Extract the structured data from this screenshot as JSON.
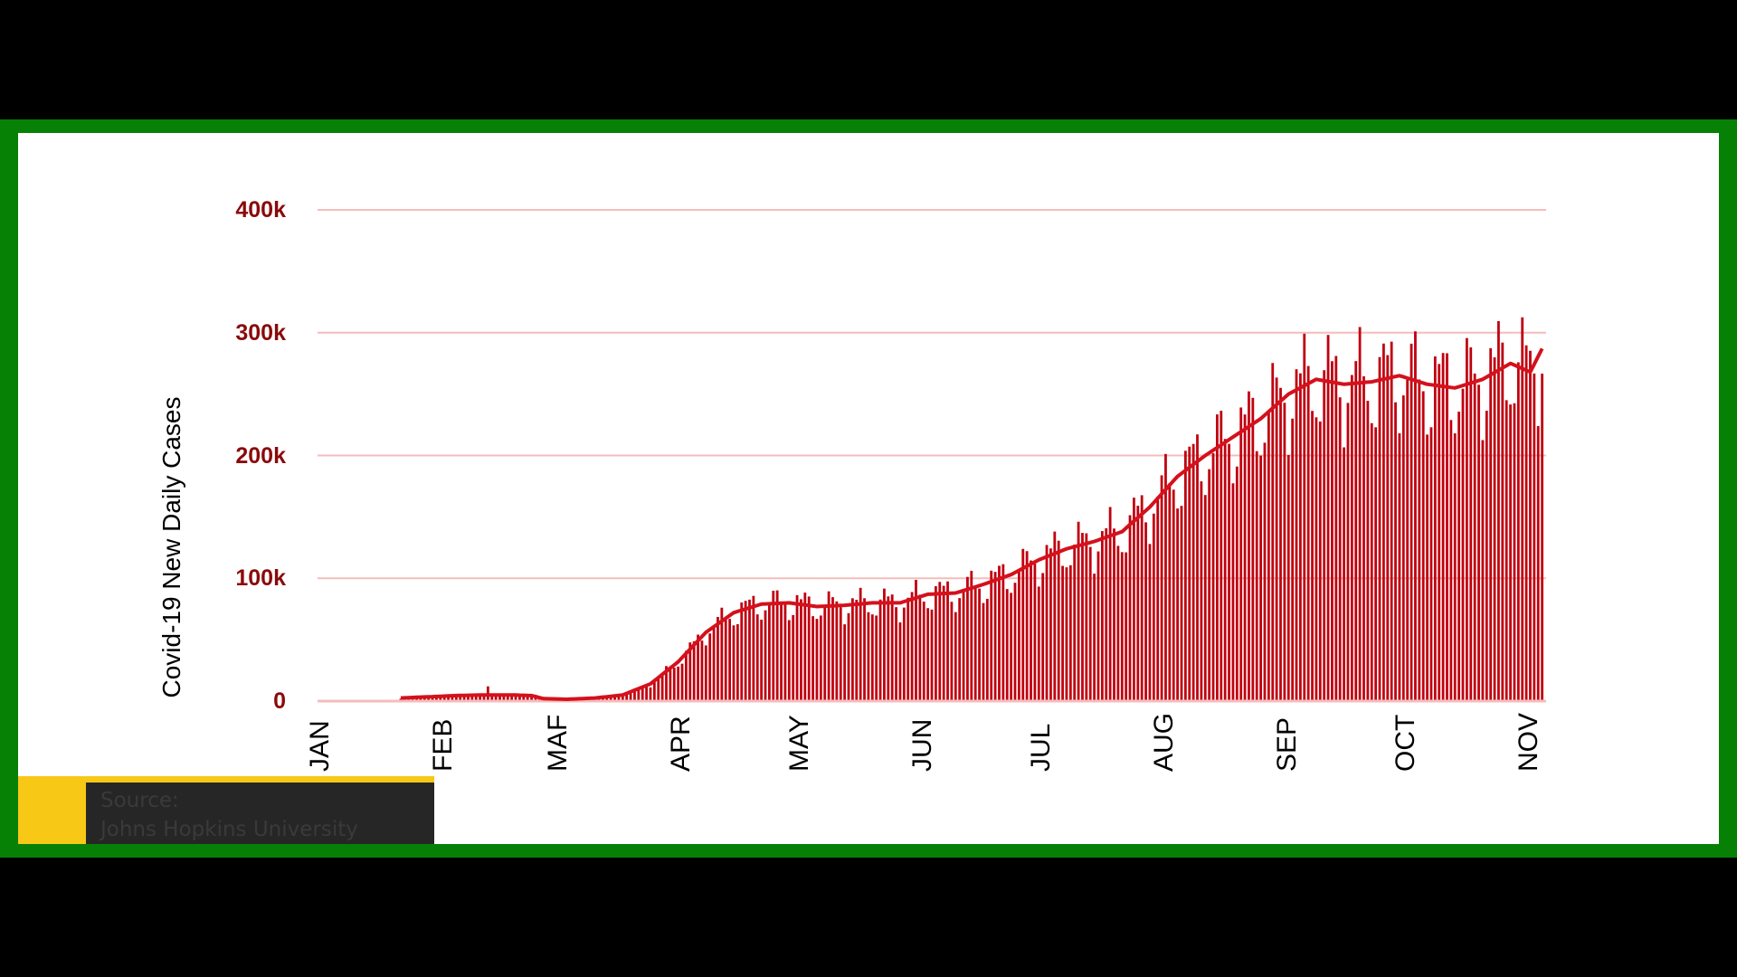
{
  "source": {
    "label": "Source:",
    "name": "Johns Hopkins University"
  },
  "colors": {
    "bars": "#c0000f",
    "average_line": "#d4111c",
    "grid": "#f5bcbc",
    "tick": "#8b0a0a",
    "frame": "#078006",
    "source_accent": "#f7c816"
  },
  "chart_data": {
    "type": "bar",
    "title": "",
    "ylabel": "Covid-19 New Daily Cases",
    "xlabel": "",
    "ylim": [
      0,
      400000
    ],
    "yticks": [
      {
        "v": 0,
        "label": "0"
      },
      {
        "v": 100000,
        "label": "100k"
      },
      {
        "v": 200000,
        "label": "200k"
      },
      {
        "v": 300000,
        "label": "300k"
      },
      {
        "v": 400000,
        "label": "400k"
      }
    ],
    "grid": true,
    "months": [
      {
        "label": "JAN",
        "day": 0
      },
      {
        "label": "FEB",
        "day": 31
      },
      {
        "label": "MAF",
        "day": 60
      },
      {
        "label": "APR",
        "day": 91
      },
      {
        "label": "MAY",
        "day": 121
      },
      {
        "label": "JUN",
        "day": 152
      },
      {
        "label": "JUL",
        "day": 182
      },
      {
        "label": "AUG",
        "day": 213
      },
      {
        "label": "SEP",
        "day": 244
      },
      {
        "label": "OCT",
        "day": 274
      },
      {
        "label": "NOV",
        "day": 305
      }
    ],
    "x_range_days": [
      0,
      310
    ],
    "series": [
      {
        "name": "7-day average (day of year, cases)",
        "type": "line",
        "points": [
          [
            21,
            2500
          ],
          [
            28,
            3500
          ],
          [
            35,
            4500
          ],
          [
            42,
            5000
          ],
          [
            49,
            5000
          ],
          [
            54,
            4500
          ],
          [
            57,
            2000
          ],
          [
            63,
            1500
          ],
          [
            70,
            2500
          ],
          [
            77,
            5000
          ],
          [
            84,
            14000
          ],
          [
            91,
            32000
          ],
          [
            98,
            56000
          ],
          [
            105,
            72000
          ],
          [
            112,
            79000
          ],
          [
            119,
            80000
          ],
          [
            126,
            77000
          ],
          [
            133,
            78000
          ],
          [
            140,
            80000
          ],
          [
            147,
            80000
          ],
          [
            154,
            87000
          ],
          [
            161,
            88000
          ],
          [
            168,
            95000
          ],
          [
            175,
            103000
          ],
          [
            182,
            115000
          ],
          [
            189,
            124000
          ],
          [
            196,
            130000
          ],
          [
            203,
            138000
          ],
          [
            210,
            158000
          ],
          [
            217,
            183000
          ],
          [
            224,
            200000
          ],
          [
            231,
            215000
          ],
          [
            238,
            230000
          ],
          [
            245,
            250000
          ],
          [
            252,
            262000
          ],
          [
            259,
            258000
          ],
          [
            266,
            260000
          ],
          [
            273,
            265000
          ],
          [
            280,
            258000
          ],
          [
            287,
            255000
          ],
          [
            294,
            262000
          ],
          [
            301,
            275000
          ],
          [
            306,
            268000
          ],
          [
            313,
            290000
          ],
          [
            317,
            287000
          ],
          [
            309,
            287000
          ]
        ]
      },
      {
        "name": "Daily new cases",
        "type": "bar",
        "weekly_factors": [
          0.84,
          0.9,
          1.04,
          1.1,
          1.12,
          1.06,
          0.94
        ]
      }
    ]
  }
}
